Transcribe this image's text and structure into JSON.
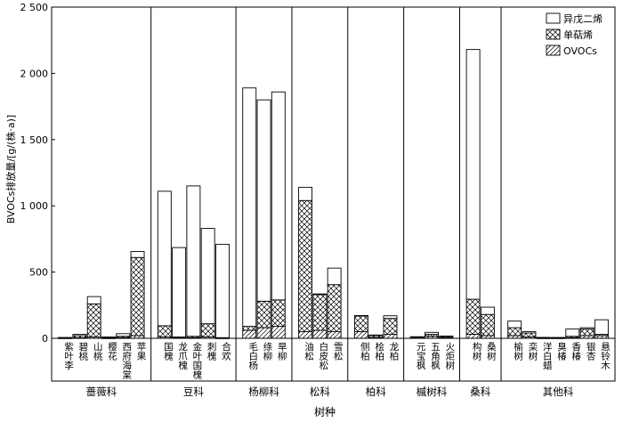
{
  "chart_data": {
    "type": "bar",
    "stacked": true,
    "ylabel": "BVOCs排放量/[g/(株·a)]",
    "xlabel": "树种",
    "ylim": [
      0,
      2500
    ],
    "yticks": [
      0,
      500,
      1000,
      1500,
      2000,
      2500
    ],
    "ytick_labels": [
      "0",
      "500",
      "1 000",
      "1 500",
      "2 000",
      "2 500"
    ],
    "legend_position": "top-right",
    "legend": [
      {
        "key": "isoprene",
        "label": "异戊二烯",
        "pattern": "none"
      },
      {
        "key": "monoterpene",
        "label": "单萜烯",
        "pattern": "crosshatch"
      },
      {
        "key": "ovoc",
        "label": "OVOCs",
        "pattern": "diagonal"
      }
    ],
    "families": [
      {
        "name": "蔷薇科",
        "species": [
          {
            "name": "紫叶李",
            "ovoc": 2,
            "monoterpene": 3,
            "isoprene": 1
          },
          {
            "name": "碧桃",
            "ovoc": 5,
            "monoterpene": 15,
            "isoprene": 10
          },
          {
            "name": "山桃",
            "ovoc": 10,
            "monoterpene": 250,
            "isoprene": 55
          },
          {
            "name": "樱花",
            "ovoc": 2,
            "monoterpene": 5,
            "isoprene": 3
          },
          {
            "name": "西府海棠",
            "ovoc": 5,
            "monoterpene": 10,
            "isoprene": 20
          },
          {
            "name": "苹果",
            "ovoc": 20,
            "monoterpene": 590,
            "isoprene": 45
          }
        ]
      },
      {
        "name": "豆科",
        "species": [
          {
            "name": "国槐",
            "ovoc": 10,
            "monoterpene": 85,
            "isoprene": 1015
          },
          {
            "name": "龙爪槐",
            "ovoc": 5,
            "monoterpene": 5,
            "isoprene": 675
          },
          {
            "name": "金叶国槐",
            "ovoc": 5,
            "monoterpene": 10,
            "isoprene": 1135
          },
          {
            "name": "刺槐",
            "ovoc": 10,
            "monoterpene": 100,
            "isoprene": 720
          },
          {
            "name": "合欢",
            "ovoc": 2,
            "monoterpene": 3,
            "isoprene": 705
          }
        ]
      },
      {
        "name": "杨柳科",
        "species": [
          {
            "name": "毛白杨",
            "ovoc": 60,
            "monoterpene": 30,
            "isoprene": 1800
          },
          {
            "name": "绦柳",
            "ovoc": 80,
            "monoterpene": 200,
            "isoprene": 1520
          },
          {
            "name": "旱柳",
            "ovoc": 90,
            "monoterpene": 200,
            "isoprene": 1570
          }
        ]
      },
      {
        "name": "松科",
        "species": [
          {
            "name": "油松",
            "ovoc": 50,
            "monoterpene": 990,
            "isoprene": 100
          },
          {
            "name": "白皮松",
            "ovoc": 60,
            "monoterpene": 270,
            "isoprene": 5
          },
          {
            "name": "雪松",
            "ovoc": 50,
            "monoterpene": 355,
            "isoprene": 125
          }
        ]
      },
      {
        "name": "柏科",
        "species": [
          {
            "name": "侧柏",
            "ovoc": 50,
            "monoterpene": 120,
            "isoprene": 2
          },
          {
            "name": "桧柏",
            "ovoc": 8,
            "monoterpene": 15,
            "isoprene": 2
          },
          {
            "name": "龙柏",
            "ovoc": 30,
            "monoterpene": 120,
            "isoprene": 20
          }
        ]
      },
      {
        "name": "槭树科",
        "species": [
          {
            "name": "元宝枫",
            "ovoc": 5,
            "monoterpene": 5,
            "isoprene": 2
          },
          {
            "name": "五角枫",
            "ovoc": 15,
            "monoterpene": 15,
            "isoprene": 15
          },
          {
            "name": "火炬树",
            "ovoc": 5,
            "monoterpene": 10,
            "isoprene": 2
          }
        ]
      },
      {
        "name": "桑科",
        "species": [
          {
            "name": "构树",
            "ovoc": 30,
            "monoterpene": 265,
            "isoprene": 1885
          },
          {
            "name": "桑树",
            "ovoc": 20,
            "monoterpene": 160,
            "isoprene": 55
          }
        ]
      },
      {
        "name": "其他科",
        "species": [
          {
            "name": "榆树",
            "ovoc": 20,
            "monoterpene": 60,
            "isoprene": 50
          },
          {
            "name": "栾树",
            "ovoc": 10,
            "monoterpene": 30,
            "isoprene": 10
          },
          {
            "name": "洋白蜡",
            "ovoc": 2,
            "monoterpene": 3,
            "isoprene": 2
          },
          {
            "name": "臭椿",
            "ovoc": 2,
            "monoterpene": 3,
            "isoprene": 1
          },
          {
            "name": "香椿",
            "ovoc": 5,
            "monoterpene": 10,
            "isoprene": 55
          },
          {
            "name": "银杏",
            "ovoc": 20,
            "monoterpene": 50,
            "isoprene": 10
          },
          {
            "name": "悬铃木",
            "ovoc": 20,
            "monoterpene": 10,
            "isoprene": 110
          }
        ]
      }
    ]
  }
}
